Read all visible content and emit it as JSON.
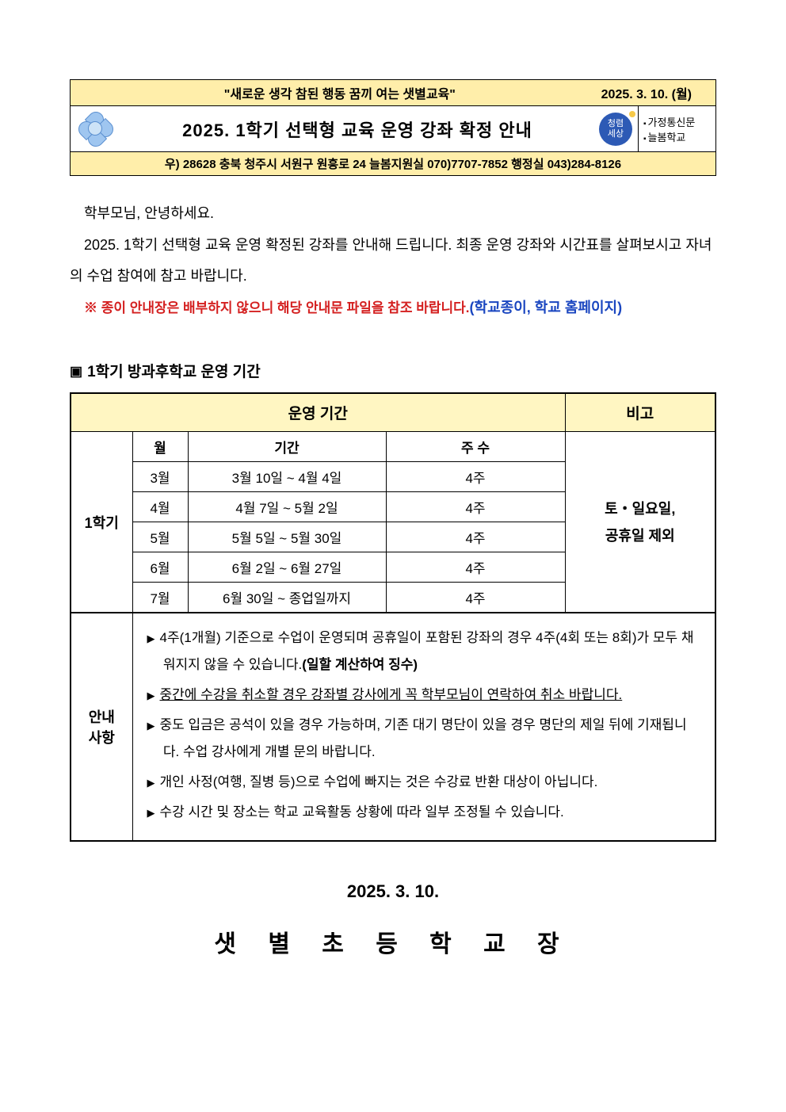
{
  "header": {
    "slogan": "\"새로운 생각 참된 행동 꿈끼 여는 샛별교육\"",
    "date": "2025. 3. 10. (월)",
    "title": "2025. 1학기 선택형 교육 운영 강좌 확정 안내",
    "stamp_text": "청렴\n세상",
    "tag1": "가정통신문",
    "tag2": "늘봄학교",
    "address": "우) 28628  충북 청주시 서원구 원흥로 24   늘봄지원실 070)7707-7852   행정실 043)284-8126"
  },
  "body": {
    "greeting": "학부모님, 안녕하세요.",
    "para1": "2025. 1학기 선택형 교육 운영 확정된 강좌를 안내해 드립니다. 최종 운영 강좌와 시간표를 살펴보시고 자녀의 수업 참여에 참고 바랍니다.",
    "notice_prefix": "※ 종이 안내장은 배부하지 않으니 해당 안내문 파일을 참조 바랍니다.",
    "notice_blue": "(학교종이, 학교 홈페이지)"
  },
  "section": {
    "title": "1학기 방과후학교 운영 기간"
  },
  "table": {
    "col_period": "운영 기간",
    "col_note": "비고",
    "sub_month": "월",
    "sub_range": "기간",
    "sub_weeks": "주 수",
    "label_sem": "1학기",
    "label_guide": "안내\n사항",
    "note_text": "토・일요일,\n공휴일 제외",
    "rows": [
      {
        "m": "3월",
        "r": "3월  10일 ~ 4월  4일",
        "w": "4주"
      },
      {
        "m": "4월",
        "r": "4월  7일 ~ 5월  2일",
        "w": "4주"
      },
      {
        "m": "5월",
        "r": "5월  5일 ~ 5월 30일",
        "w": "4주"
      },
      {
        "m": "6월",
        "r": "6월 2일 ~ 6월 27일",
        "w": "4주"
      },
      {
        "m": "7월",
        "r": "6월 30일  ~ 종업일까지",
        "w": "4주"
      }
    ],
    "guide": {
      "g1a": "4주(1개월) 기준으로 수업이 운영되며 공휴일이 포함된 강좌의 경우 4주(4회 또는 8회)가 모두 채워지지 않을 수 있습니다.",
      "g1b": "(일할 계산하여 징수)",
      "g2": "중간에 수강을 취소할 경우 강좌별 강사에게 꼭 학부모님이 연락하여 취소 바랍니다.",
      "g3": "중도 입금은 공석이 있을 경우 가능하며, 기존 대기 명단이 있을 경우 명단의 제일 뒤에 기재됩니다. 수업 강사에게 개별 문의 바랍니다.",
      "g4": "개인 사정(여행, 질병 등)으로 수업에 빠지는 것은 수강료 반환 대상이 아닙니다.",
      "g5": "수강 시간 및 장소는 학교 교육활동 상황에 따라 일부 조정될 수 있습니다."
    }
  },
  "footer": {
    "date": "2025. 3. 10.",
    "sign": "샛 별 초 등 학 교 장"
  },
  "colors": {
    "banner_bg": "#ffeeaa",
    "table_header_bg": "#fff6c2",
    "red": "#d42020",
    "blue": "#1a46c0",
    "stamp": "#2d5ab5"
  }
}
